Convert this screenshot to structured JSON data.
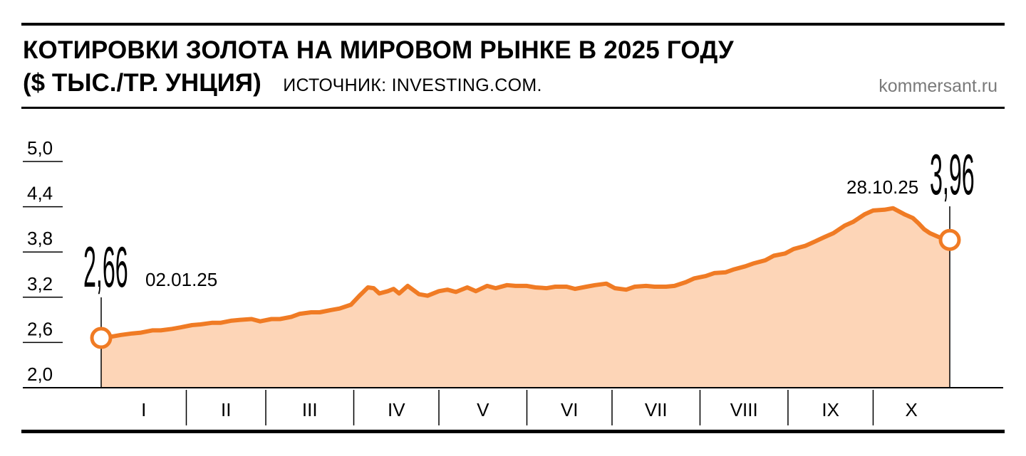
{
  "header": {
    "title": "КОТИРОВКИ ЗОЛОТА НА МИРОВОМ РЫНКЕ В 2025 ГОДУ",
    "subtitle": "($ ТЫС./ТР. УНЦИЯ)",
    "source": "ИСТОЧНИК: INVESTING.COM.",
    "site": "kommersant.ru"
  },
  "colors": {
    "line": "#f07b24",
    "fill": "#fdd5b7",
    "text": "#000000",
    "muted": "#7a7a7a"
  },
  "chart_data": {
    "type": "area",
    "title": "КОТИРОВКИ ЗОЛОТА НА МИРОВОМ РЫНКЕ В 2025 ГОДУ",
    "ylabel": "($ ТЫС./ТР. УНЦИЯ)",
    "xlabel": "",
    "ylim": [
      2.0,
      5.0
    ],
    "yticks": [
      "5,0",
      "4,4",
      "3,8",
      "3,2",
      "2,6",
      "2,0"
    ],
    "ytick_values": [
      5.0,
      4.4,
      3.8,
      3.2,
      2.6,
      2.0
    ],
    "months": [
      "I",
      "II",
      "III",
      "IV",
      "V",
      "VI",
      "VII",
      "VIII",
      "IX",
      "X"
    ],
    "month_start_days": [
      1,
      32,
      60,
      91,
      121,
      152,
      182,
      213,
      244,
      274
    ],
    "x_range_days": [
      2,
      301
    ],
    "grid": false,
    "start": {
      "date": "02.01.25",
      "value_label": "2,66",
      "value": 2.66
    },
    "end": {
      "date": "28.10.25",
      "value_label": "3,96",
      "value": 3.96
    },
    "series": [
      {
        "x": [
          2,
          6,
          9,
          13,
          16,
          20,
          23,
          27,
          30,
          34,
          37,
          41,
          44,
          48,
          51,
          55,
          58,
          62,
          65,
          69,
          72,
          76,
          79,
          83,
          86,
          90,
          93,
          96,
          98,
          100,
          103,
          105,
          107,
          110,
          114,
          117,
          121,
          124,
          127,
          131,
          134,
          138,
          141,
          145,
          148,
          152,
          155,
          159,
          162,
          166,
          169,
          173,
          176,
          180,
          183,
          187,
          190,
          194,
          197,
          201,
          204,
          208,
          211,
          215,
          218,
          222,
          225,
          229,
          232,
          236,
          239,
          243,
          246,
          250,
          253,
          257,
          260,
          264,
          267,
          271,
          274,
          278,
          281,
          285,
          288,
          290,
          292,
          294,
          297,
          301
        ],
        "values": [
          2.66,
          2.68,
          2.7,
          2.72,
          2.73,
          2.76,
          2.76,
          2.78,
          2.8,
          2.83,
          2.84,
          2.86,
          2.86,
          2.89,
          2.9,
          2.91,
          2.88,
          2.91,
          2.91,
          2.94,
          2.98,
          3.0,
          3.0,
          3.03,
          3.05,
          3.1,
          3.22,
          3.33,
          3.32,
          3.25,
          3.28,
          3.31,
          3.25,
          3.35,
          3.24,
          3.22,
          3.28,
          3.3,
          3.27,
          3.33,
          3.28,
          3.35,
          3.32,
          3.36,
          3.35,
          3.35,
          3.33,
          3.32,
          3.34,
          3.34,
          3.31,
          3.34,
          3.36,
          3.38,
          3.32,
          3.3,
          3.34,
          3.35,
          3.34,
          3.34,
          3.35,
          3.4,
          3.45,
          3.48,
          3.52,
          3.53,
          3.57,
          3.61,
          3.65,
          3.69,
          3.75,
          3.78,
          3.84,
          3.88,
          3.93,
          4.0,
          4.05,
          4.15,
          4.2,
          4.3,
          4.35,
          4.36,
          4.38,
          4.3,
          4.25,
          4.18,
          4.1,
          4.05,
          4.0,
          3.96
        ]
      }
    ]
  }
}
